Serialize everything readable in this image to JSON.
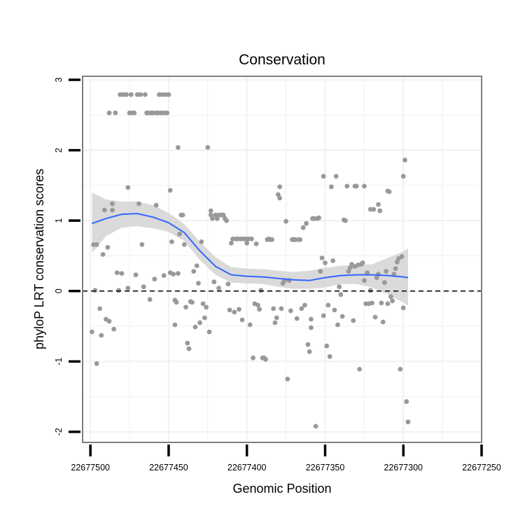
{
  "chart_data": {
    "type": "scatter",
    "title": "Conservation",
    "xlabel": "Genomic Position",
    "ylabel": "phyloP LRT conservation scores",
    "xlim": [
      22677505,
      22677250
    ],
    "ylim": [
      -2.15,
      3.05
    ],
    "x_reversed": true,
    "x_ticks": [
      22677500,
      22677450,
      22677400,
      22677350,
      22677300,
      22677250
    ],
    "x_tick_labels": [
      "22677500",
      "22677450",
      "22677400",
      "22677350",
      "22677300",
      "22677250"
    ],
    "y_ticks": [
      3,
      2,
      1,
      0,
      -1,
      -2
    ],
    "y_tick_labels": [
      "3",
      "2",
      "1",
      "0",
      "-1",
      "-2"
    ],
    "reference_line": {
      "y": 0,
      "style": "dashed",
      "color": "#000000"
    },
    "colors": {
      "points": "#999999",
      "smooth": "#3366ff",
      "band": "#d6d6d6",
      "panel_border": "#7f7f7f",
      "grid": "#f2f2f2"
    },
    "points": [
      [
        22677498,
        0.66
      ],
      [
        22677496,
        0.66
      ],
      [
        22677499,
        -0.58
      ],
      [
        22677497,
        0.01
      ],
      [
        22677496,
        -1.03
      ],
      [
        22677494,
        -0.25
      ],
      [
        22677493,
        -0.63
      ],
      [
        22677492,
        0.52
      ],
      [
        22677491,
        1.15
      ],
      [
        22677490,
        -0.4
      ],
      [
        22677489,
        0.62
      ],
      [
        22677488,
        2.53
      ],
      [
        22677488,
        -0.43
      ],
      [
        22677486,
        1.24
      ],
      [
        22677486,
        1.15
      ],
      [
        22677485,
        -0.54
      ],
      [
        22677484,
        2.53
      ],
      [
        22677483,
        0.26
      ],
      [
        22677482,
        0.01
      ],
      [
        22677481,
        2.79
      ],
      [
        22677480,
        0.25
      ],
      [
        22677479,
        2.79
      ],
      [
        22677477,
        2.79
      ],
      [
        22677476,
        1.47
      ],
      [
        22677476,
        0.04
      ],
      [
        22677475,
        2.53
      ],
      [
        22677474,
        2.79
      ],
      [
        22677473,
        2.53
      ],
      [
        22677472,
        2.53
      ],
      [
        22677471,
        0.23
      ],
      [
        22677470,
        2.79
      ],
      [
        22677469,
        1.24
      ],
      [
        22677468,
        2.79
      ],
      [
        22677467,
        0.66
      ],
      [
        22677466,
        0.06
      ],
      [
        22677465,
        2.79
      ],
      [
        22677464,
        2.53
      ],
      [
        22677463,
        2.53
      ],
      [
        22677462,
        -0.12
      ],
      [
        22677461,
        2.53
      ],
      [
        22677460,
        2.53
      ],
      [
        22677459,
        0.17
      ],
      [
        22677458,
        2.53
      ],
      [
        22677458,
        1.22
      ],
      [
        22677457,
        2.53
      ],
      [
        22677456,
        2.79
      ],
      [
        22677455,
        2.53
      ],
      [
        22677454,
        2.79
      ],
      [
        22677453,
        0.22
      ],
      [
        22677453,
        2.53
      ],
      [
        22677452,
        2.79
      ],
      [
        22677451,
        2.53
      ],
      [
        22677450,
        2.79
      ],
      [
        22677449,
        1.43
      ],
      [
        22677449,
        0.26
      ],
      [
        22677448,
        0.7
      ],
      [
        22677447,
        0.24
      ],
      [
        22677446,
        -0.48
      ],
      [
        22677446,
        -0.13
      ],
      [
        22677445,
        -0.16
      ],
      [
        22677444,
        2.04
      ],
      [
        22677444,
        0.25
      ],
      [
        22677443,
        0.81
      ],
      [
        22677442,
        1.08
      ],
      [
        22677441,
        1.08
      ],
      [
        22677440,
        0.66
      ],
      [
        22677439,
        -0.23
      ],
      [
        22677438,
        -0.74
      ],
      [
        22677437,
        -0.82
      ],
      [
        22677436,
        -0.15
      ],
      [
        22677435,
        -0.16
      ],
      [
        22677434,
        0.28
      ],
      [
        22677433,
        -0.51
      ],
      [
        22677432,
        0.36
      ],
      [
        22677431,
        0.11
      ],
      [
        22677430,
        -0.45
      ],
      [
        22677429,
        0.7
      ],
      [
        22677428,
        -0.18
      ],
      [
        22677427,
        -0.38
      ],
      [
        22677426,
        -0.23
      ],
      [
        22677425,
        2.04
      ],
      [
        22677424,
        -0.58
      ],
      [
        22677423,
        1.14
      ],
      [
        22677423,
        1.08
      ],
      [
        22677422,
        1.03
      ],
      [
        22677421,
        0.13
      ],
      [
        22677420,
        1.08
      ],
      [
        22677419,
        1.03
      ],
      [
        22677418,
        1.08
      ],
      [
        22677418,
        0.04
      ],
      [
        22677417,
        1.08
      ],
      [
        22677416,
        1.08
      ],
      [
        22677415,
        1.08
      ],
      [
        22677414,
        1.03
      ],
      [
        22677413,
        1.0
      ],
      [
        22677412,
        0.1
      ],
      [
        22677411,
        -0.27
      ],
      [
        22677410,
        0.68
      ],
      [
        22677409,
        0.74
      ],
      [
        22677408,
        -0.3
      ],
      [
        22677407,
        0.74
      ],
      [
        22677406,
        0.74
      ],
      [
        22677405,
        -0.26
      ],
      [
        22677404,
        0.74
      ],
      [
        22677403,
        -0.41
      ],
      [
        22677402,
        0.74
      ],
      [
        22677401,
        0.74
      ],
      [
        22677400,
        0.68
      ],
      [
        22677399,
        0.74
      ],
      [
        22677398,
        -0.48
      ],
      [
        22677397,
        0.74
      ],
      [
        22677396,
        -0.95
      ],
      [
        22677395,
        -0.18
      ],
      [
        22677394,
        0.67
      ],
      [
        22677393,
        -0.2
      ],
      [
        22677392,
        -0.26
      ],
      [
        22677391,
        0.01
      ],
      [
        22677390,
        -0.95
      ],
      [
        22677389,
        -0.95
      ],
      [
        22677388,
        -0.97
      ],
      [
        22677387,
        0.73
      ],
      [
        22677386,
        0.74
      ],
      [
        22677385,
        0.73
      ],
      [
        22677384,
        0.73
      ],
      [
        22677383,
        -0.25
      ],
      [
        22677382,
        -0.45
      ],
      [
        22677381,
        -0.38
      ],
      [
        22677380,
        1.37
      ],
      [
        22677379,
        1.48
      ],
      [
        22677379,
        1.32
      ],
      [
        22677378,
        -0.25
      ],
      [
        22677377,
        0.11
      ],
      [
        22677376,
        0.15
      ],
      [
        22677375,
        0.99
      ],
      [
        22677374,
        -1.25
      ],
      [
        22677373,
        0.15
      ],
      [
        22677372,
        -0.28
      ],
      [
        22677371,
        0.73
      ],
      [
        22677370,
        0.73
      ],
      [
        22677369,
        0.73
      ],
      [
        22677368,
        -0.39
      ],
      [
        22677367,
        0.73
      ],
      [
        22677366,
        0.73
      ],
      [
        22677365,
        -0.25
      ],
      [
        22677364,
        0.9
      ],
      [
        22677363,
        -0.2
      ],
      [
        22677362,
        0.96
      ],
      [
        22677361,
        -0.76
      ],
      [
        22677360,
        -0.86
      ],
      [
        22677359,
        -0.4
      ],
      [
        22677359,
        -0.52
      ],
      [
        22677358,
        1.03
      ],
      [
        22677357,
        1.03
      ],
      [
        22677356,
        -1.92
      ],
      [
        22677355,
        1.03
      ],
      [
        22677354,
        1.04
      ],
      [
        22677353,
        0.28
      ],
      [
        22677352,
        0.47
      ],
      [
        22677351,
        1.63
      ],
      [
        22677351,
        -0.35
      ],
      [
        22677350,
        0.4
      ],
      [
        22677349,
        -0.78
      ],
      [
        22677348,
        -0.2
      ],
      [
        22677347,
        -0.93
      ],
      [
        22677346,
        1.48
      ],
      [
        22677345,
        0.43
      ],
      [
        22677344,
        -0.27
      ],
      [
        22677343,
        1.63
      ],
      [
        22677342,
        -0.48
      ],
      [
        22677341,
        0.06
      ],
      [
        22677340,
        -0.05
      ],
      [
        22677339,
        -0.36
      ],
      [
        22677338,
        1.01
      ],
      [
        22677337,
        1.0
      ],
      [
        22677336,
        1.49
      ],
      [
        22677335,
        0.28
      ],
      [
        22677334,
        0.33
      ],
      [
        22677333,
        0.38
      ],
      [
        22677332,
        -0.42
      ],
      [
        22677331,
        1.49
      ],
      [
        22677331,
        0.35
      ],
      [
        22677330,
        1.49
      ],
      [
        22677329,
        0.37
      ],
      [
        22677328,
        -1.11
      ],
      [
        22677327,
        0.38
      ],
      [
        22677326,
        0.4
      ],
      [
        22677325,
        1.49
      ],
      [
        22677325,
        0.15
      ],
      [
        22677324,
        -0.18
      ],
      [
        22677323,
        0.26
      ],
      [
        22677322,
        -0.18
      ],
      [
        22677321,
        1.16
      ],
      [
        22677321,
        0.01
      ],
      [
        22677320,
        -0.17
      ],
      [
        22677319,
        1.16
      ],
      [
        22677318,
        -0.37
      ],
      [
        22677317,
        0.19
      ],
      [
        22677316,
        0.24
      ],
      [
        22677316,
        1.23
      ],
      [
        22677315,
        1.14
      ],
      [
        22677314,
        -0.17
      ],
      [
        22677313,
        -0.44
      ],
      [
        22677312,
        0.12
      ],
      [
        22677311,
        0.28
      ],
      [
        22677310,
        1.42
      ],
      [
        22677310,
        -0.18
      ],
      [
        22677309,
        1.41
      ],
      [
        22677308,
        -0.08
      ],
      [
        22677307,
        -0.14
      ],
      [
        22677306,
        0.24
      ],
      [
        22677305,
        0.32
      ],
      [
        22677304,
        0.41
      ],
      [
        22677303,
        0.46
      ],
      [
        22677302,
        -1.11
      ],
      [
        22677301,
        0.49
      ],
      [
        22677300,
        1.63
      ],
      [
        22677300,
        -0.24
      ],
      [
        22677299,
        1.86
      ],
      [
        22677298,
        -1.57
      ],
      [
        22677297,
        -1.86
      ]
    ],
    "smooth_curve": [
      [
        22677499,
        0.96
      ],
      [
        22677490,
        1.03
      ],
      [
        22677480,
        1.09
      ],
      [
        22677470,
        1.1
      ],
      [
        22677460,
        1.05
      ],
      [
        22677450,
        0.97
      ],
      [
        22677440,
        0.83
      ],
      [
        22677430,
        0.57
      ],
      [
        22677420,
        0.35
      ],
      [
        22677410,
        0.23
      ],
      [
        22677400,
        0.21
      ],
      [
        22677390,
        0.2
      ],
      [
        22677380,
        0.18
      ],
      [
        22677370,
        0.16
      ],
      [
        22677360,
        0.15
      ],
      [
        22677350,
        0.19
      ],
      [
        22677340,
        0.22
      ],
      [
        22677330,
        0.23
      ],
      [
        22677320,
        0.23
      ],
      [
        22677310,
        0.22
      ],
      [
        22677300,
        0.2
      ],
      [
        22677297,
        0.19
      ]
    ],
    "confidence_band": [
      [
        22677499,
        0.54,
        1.4
      ],
      [
        22677490,
        0.78,
        1.3
      ],
      [
        22677480,
        0.9,
        1.27
      ],
      [
        22677470,
        0.92,
        1.27
      ],
      [
        22677460,
        0.89,
        1.22
      ],
      [
        22677450,
        0.84,
        1.11
      ],
      [
        22677440,
        0.71,
        0.95
      ],
      [
        22677430,
        0.44,
        0.7
      ],
      [
        22677420,
        0.23,
        0.48
      ],
      [
        22677410,
        0.12,
        0.34
      ],
      [
        22677400,
        0.11,
        0.32
      ],
      [
        22677390,
        0.1,
        0.31
      ],
      [
        22677380,
        0.06,
        0.29
      ],
      [
        22677370,
        0.03,
        0.27
      ],
      [
        22677360,
        0.03,
        0.29
      ],
      [
        22677350,
        0.05,
        0.33
      ],
      [
        22677340,
        0.1,
        0.36
      ],
      [
        22677330,
        0.1,
        0.37
      ],
      [
        22677320,
        0.05,
        0.38
      ],
      [
        22677310,
        -0.05,
        0.47
      ],
      [
        22677300,
        -0.16,
        0.56
      ],
      [
        22677297,
        -0.21,
        0.61
      ]
    ]
  }
}
